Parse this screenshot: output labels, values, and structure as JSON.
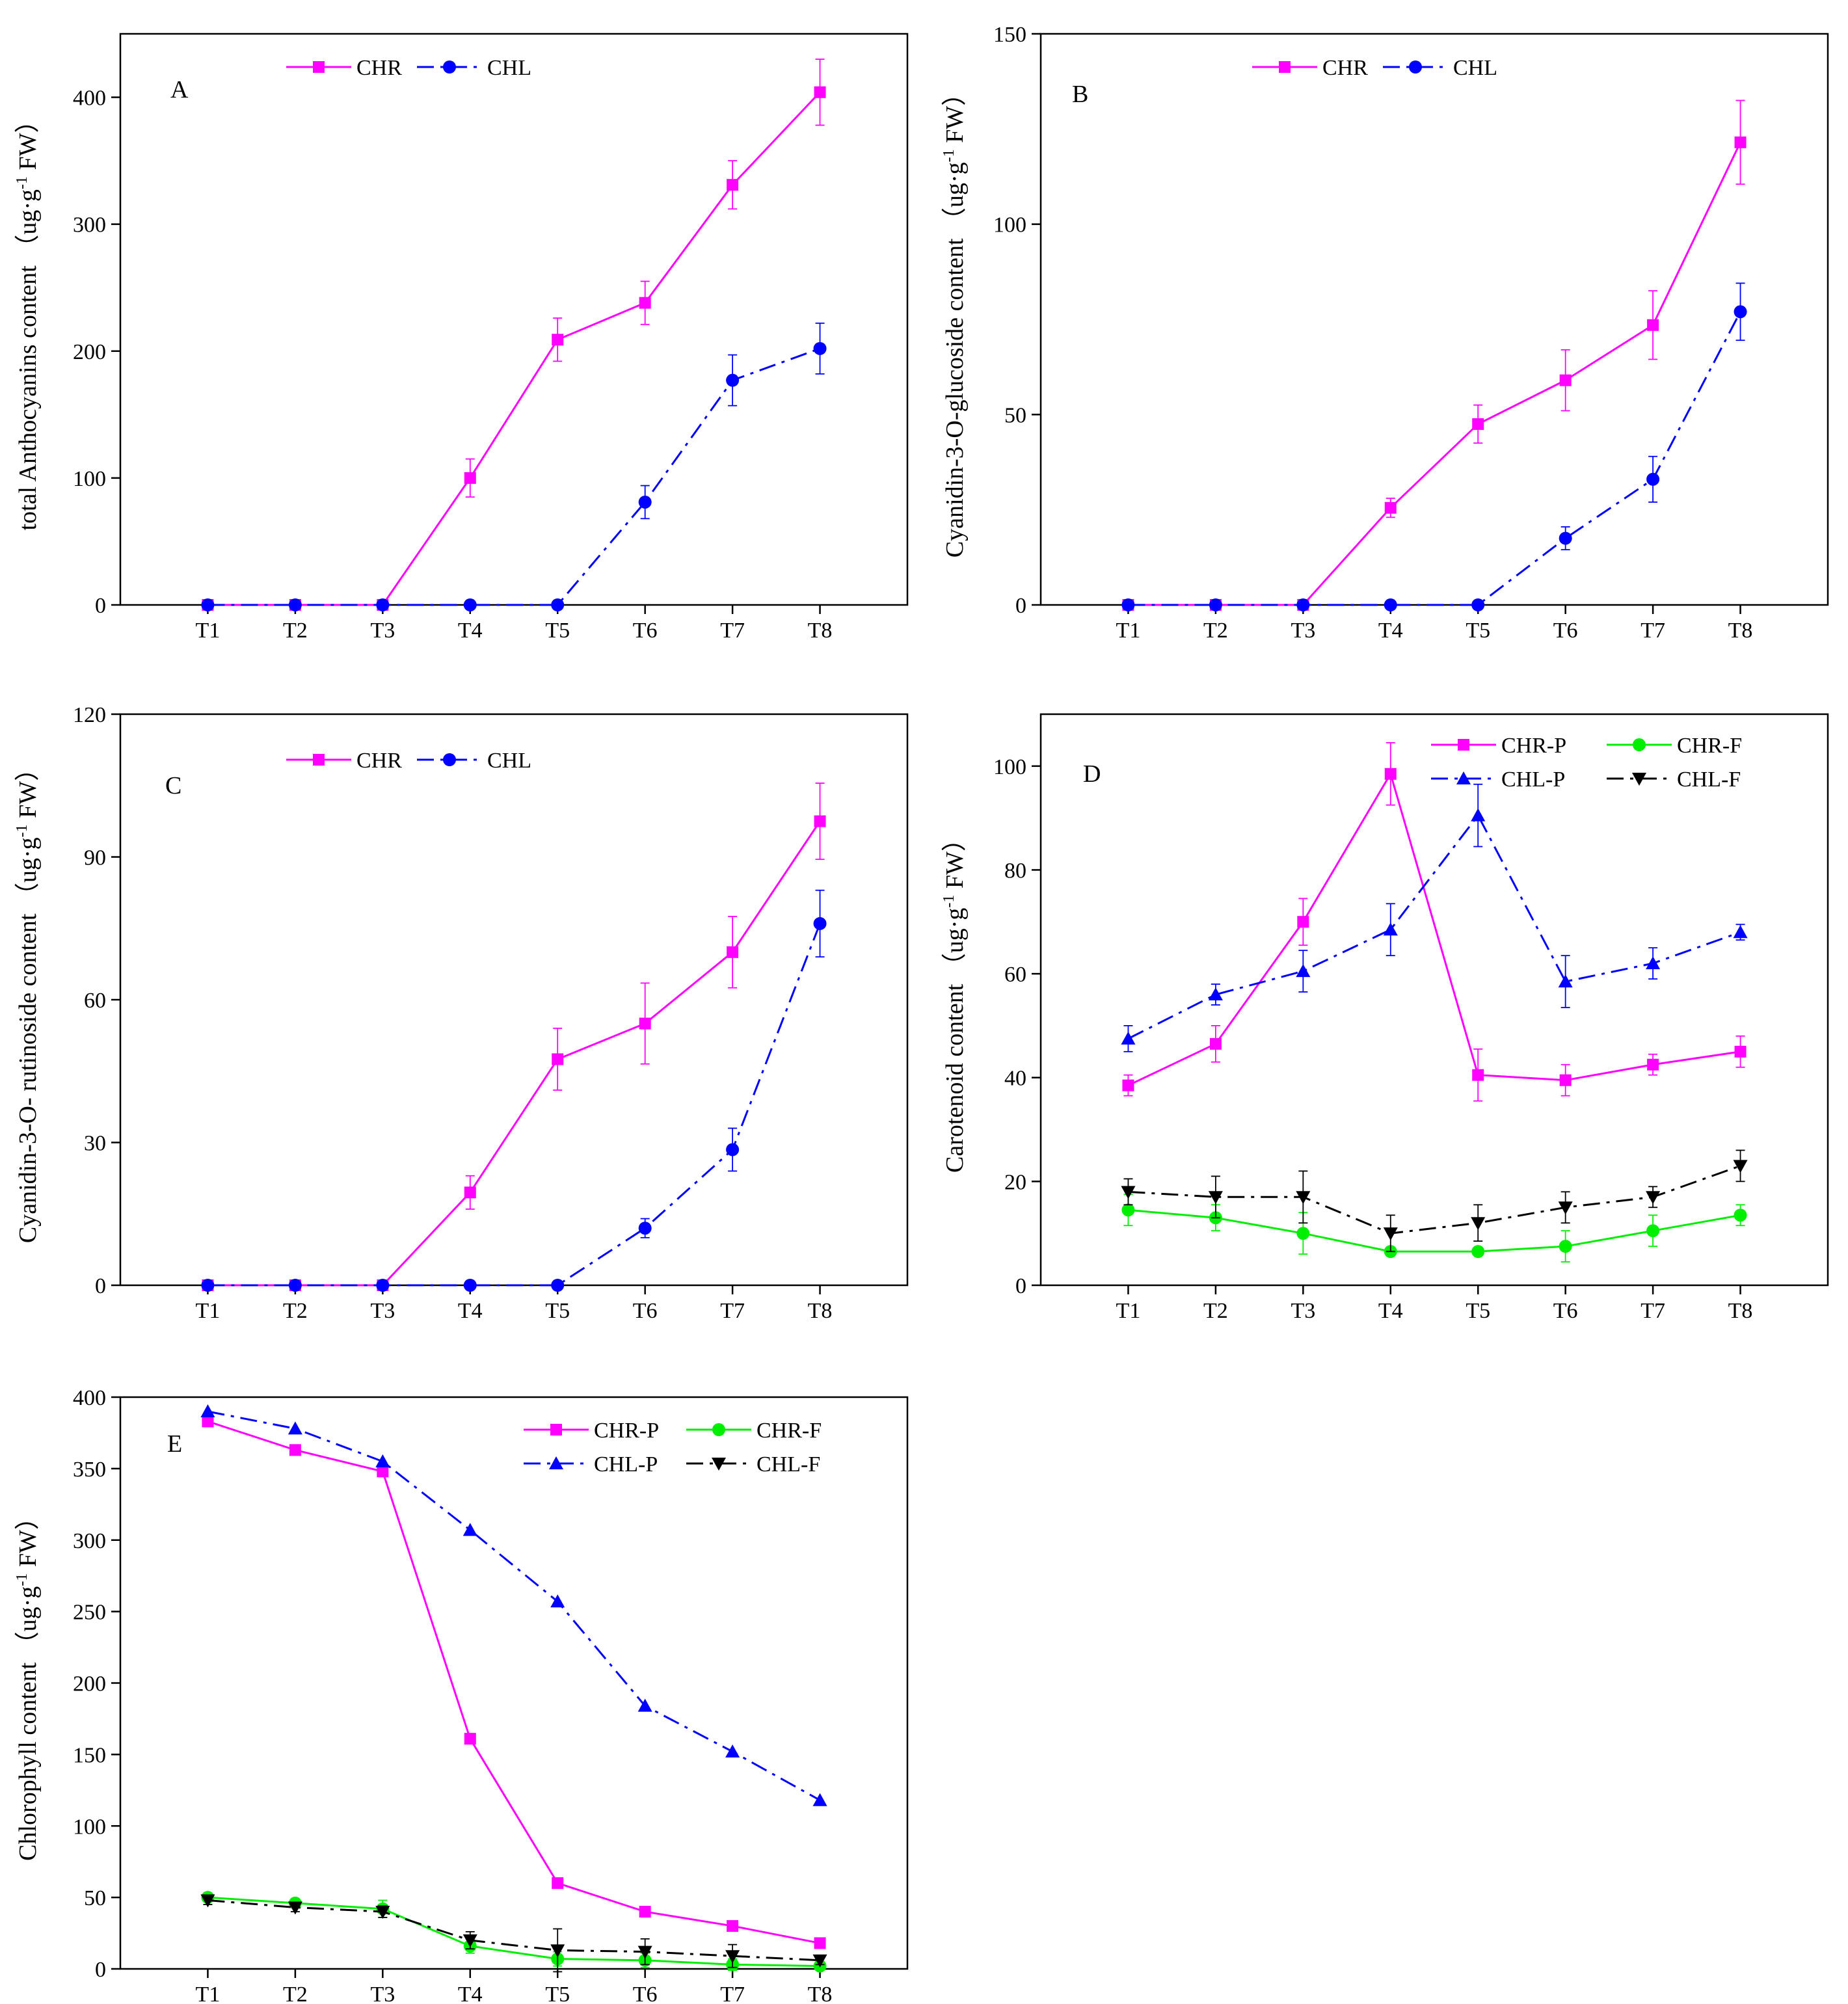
{
  "chart_data": [
    {
      "id": "A",
      "type": "line",
      "panel_label": "A",
      "ylabel": "total Anthocyanins content （ug·g",
      "ylabel_sup": "-1",
      "ylabel_tail": " FW）",
      "ylim": [
        0,
        450
      ],
      "yticks": [
        0,
        100,
        200,
        300,
        400
      ],
      "categories": [
        "T1",
        "T2",
        "T3",
        "T4",
        "T5",
        "T6",
        "T7",
        "T8"
      ],
      "legend_rows": [
        [
          "CHR",
          "CHL"
        ]
      ],
      "series": [
        {
          "name": "CHR",
          "color": "#ff00ff",
          "dash": "solid",
          "marker": "square",
          "values": [
            0,
            0,
            0,
            100,
            209,
            238,
            331,
            404
          ],
          "errors": [
            0,
            0,
            0,
            15,
            17,
            17,
            19,
            26
          ]
        },
        {
          "name": "CHL",
          "color": "#0000ff",
          "dash": "dashdot",
          "marker": "circle",
          "values": [
            0,
            0,
            0,
            0,
            0,
            81,
            177,
            202
          ],
          "errors": [
            0,
            0,
            0,
            0,
            0,
            13,
            20,
            20
          ]
        }
      ]
    },
    {
      "id": "B",
      "type": "line",
      "panel_label": "B",
      "ylabel": "Cyanidin-3-O-glucoside content （ug·g",
      "ylabel_sup": "-1",
      "ylabel_tail": " FW）",
      "ylim": [
        0,
        150
      ],
      "yticks": [
        0,
        50,
        100,
        150
      ],
      "categories": [
        "T1",
        "T2",
        "T3",
        "T4",
        "T5",
        "T6",
        "T7",
        "T8"
      ],
      "legend_rows": [
        [
          "CHR",
          "CHL"
        ]
      ],
      "series": [
        {
          "name": "CHR",
          "color": "#ff00ff",
          "dash": "solid",
          "marker": "square",
          "values": [
            0,
            0,
            0,
            25.5,
            47.5,
            59,
            73.5,
            121.5
          ],
          "errors": [
            0,
            0,
            0,
            2.5,
            5,
            8,
            9,
            11
          ]
        },
        {
          "name": "CHL",
          "color": "#0000ff",
          "dash": "dashdot",
          "marker": "circle",
          "values": [
            0,
            0,
            0,
            0,
            0,
            17.5,
            33,
            77
          ],
          "errors": [
            0,
            0,
            0,
            0,
            0,
            3,
            6,
            7.5
          ]
        }
      ]
    },
    {
      "id": "C",
      "type": "line",
      "panel_label": "C",
      "ylabel": "Cyanidin-3-O- rutinoside content （ug·g",
      "ylabel_sup": "-1",
      "ylabel_tail": " FW）",
      "ylim": [
        0,
        120
      ],
      "yticks": [
        0,
        30,
        60,
        90,
        120
      ],
      "categories": [
        "T1",
        "T2",
        "T3",
        "T4",
        "T5",
        "T6",
        "T7",
        "T8"
      ],
      "legend_rows": [
        [
          "CHR",
          "CHL"
        ]
      ],
      "series": [
        {
          "name": "CHR",
          "color": "#ff00ff",
          "dash": "solid",
          "marker": "square",
          "values": [
            0,
            0,
            0,
            19.5,
            47.5,
            55,
            70,
            97.5
          ],
          "errors": [
            0,
            0,
            0,
            3.5,
            6.5,
            8.5,
            7.5,
            8
          ]
        },
        {
          "name": "CHL",
          "color": "#0000ff",
          "dash": "dashdot",
          "marker": "circle",
          "values": [
            0,
            0,
            0,
            0,
            0,
            12,
            28.5,
            76
          ],
          "errors": [
            0,
            0,
            0,
            0,
            0,
            2,
            4.5,
            7
          ]
        }
      ]
    },
    {
      "id": "D",
      "type": "line",
      "panel_label": "D",
      "ylabel": "Carotenoid content （ug·g",
      "ylabel_sup": "-1",
      "ylabel_tail": " FW）",
      "ylim": [
        0,
        110
      ],
      "yticks": [
        0,
        20,
        40,
        60,
        80,
        100
      ],
      "categories": [
        "T1",
        "T2",
        "T3",
        "T4",
        "T5",
        "T6",
        "T7",
        "T8"
      ],
      "legend_rows": [
        [
          "CHR-P",
          "CHR-F"
        ],
        [
          "CHL-P",
          "CHL-F"
        ]
      ],
      "series": [
        {
          "name": "CHR-P",
          "color": "#ff00ff",
          "dash": "solid",
          "marker": "square",
          "values": [
            38.5,
            46.5,
            70,
            98.5,
            40.5,
            39.5,
            42.5,
            45
          ],
          "errors": [
            2,
            3.5,
            4.5,
            6,
            5,
            3,
            2,
            3
          ]
        },
        {
          "name": "CHR-F",
          "color": "#00ee00",
          "dash": "solid",
          "marker": "circle",
          "values": [
            14.5,
            13,
            10,
            6.5,
            6.5,
            7.5,
            10.5,
            13.5
          ],
          "errors": [
            3,
            2.5,
            4,
            0,
            0,
            3,
            3,
            2
          ]
        },
        {
          "name": "CHL-P",
          "color": "#0000ff",
          "dash": "dashdot",
          "marker": "triangle-up",
          "values": [
            47.5,
            56,
            60.5,
            68.5,
            90.5,
            58.5,
            62,
            68
          ],
          "errors": [
            2.5,
            2,
            4,
            5,
            6,
            5,
            3,
            1.5
          ]
        },
        {
          "name": "CHL-F",
          "color": "#000000",
          "dash": "dashdot",
          "marker": "triangle-down",
          "values": [
            18,
            17,
            17,
            10,
            12,
            15,
            17,
            23
          ],
          "errors": [
            2.5,
            4,
            5,
            3.5,
            3.5,
            3,
            2,
            3
          ]
        }
      ]
    },
    {
      "id": "E",
      "type": "line",
      "panel_label": "E",
      "ylabel": "Chlorophyll content （ug·g",
      "ylabel_sup": "-1",
      "ylabel_tail": " FW）",
      "ylim": [
        0,
        400
      ],
      "yticks": [
        0,
        50,
        100,
        150,
        200,
        250,
        300,
        350,
        400
      ],
      "categories": [
        "T1",
        "T2",
        "T3",
        "T4",
        "T5",
        "T6",
        "T7",
        "T8"
      ],
      "legend_rows": [
        [
          "CHR-P",
          "CHR-F"
        ],
        [
          "CHL-P",
          "CHL-F"
        ]
      ],
      "series": [
        {
          "name": "CHR-P",
          "color": "#ff00ff",
          "dash": "solid",
          "marker": "square",
          "values": [
            383,
            363,
            348,
            161,
            60,
            40,
            30,
            18
          ],
          "errors": [
            0,
            0,
            0,
            0,
            0,
            0,
            0,
            0
          ]
        },
        {
          "name": "CHR-F",
          "color": "#00ee00",
          "dash": "solid",
          "marker": "circle",
          "values": [
            50,
            46,
            42,
            16,
            7,
            6,
            3,
            2
          ],
          "errors": [
            3,
            3,
            6,
            5,
            5,
            5,
            4,
            3
          ]
        },
        {
          "name": "CHL-P",
          "color": "#0000ff",
          "dash": "dashdot",
          "marker": "triangle-up",
          "values": [
            390,
            378,
            355,
            307,
            257,
            184,
            152,
            118
          ],
          "errors": [
            0,
            0,
            0,
            0,
            0,
            0,
            0,
            0
          ]
        },
        {
          "name": "CHL-F",
          "color": "#000000",
          "dash": "dashdot",
          "marker": "triangle-down",
          "values": [
            48,
            43,
            40,
            20,
            13,
            12,
            9,
            6
          ],
          "errors": [
            3,
            3,
            4,
            6,
            15,
            9,
            8,
            3
          ]
        }
      ]
    }
  ]
}
